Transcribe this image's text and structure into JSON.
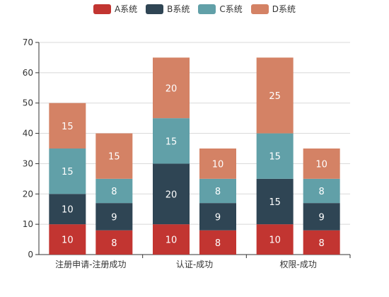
{
  "chart_data": {
    "type": "bar",
    "stacked": true,
    "groups": [
      {
        "label": "注册申请-注册成功",
        "categories": [
          "",
          ""
        ]
      },
      {
        "label": "认证-成功",
        "categories": [
          "",
          ""
        ]
      },
      {
        "label": "权限-成功",
        "categories": [
          "",
          ""
        ]
      }
    ],
    "series": [
      {
        "name": "A系统",
        "color": "#c23531",
        "values": [
          10,
          8,
          10,
          8,
          10,
          8
        ]
      },
      {
        "name": "B系统",
        "color": "#2f4554",
        "values": [
          10,
          9,
          20,
          9,
          15,
          9
        ]
      },
      {
        "name": "C系统",
        "color": "#61a0a8",
        "values": [
          15,
          8,
          15,
          8,
          15,
          8
        ]
      },
      {
        "name": "D系统",
        "color": "#d48265",
        "values": [
          15,
          15,
          20,
          10,
          25,
          10
        ]
      }
    ],
    "ylim": [
      0,
      70
    ],
    "yticks": [
      0,
      10,
      20,
      30,
      40,
      50,
      60,
      70
    ],
    "grid": true,
    "legend_position": "top-center",
    "data_labels": true
  }
}
